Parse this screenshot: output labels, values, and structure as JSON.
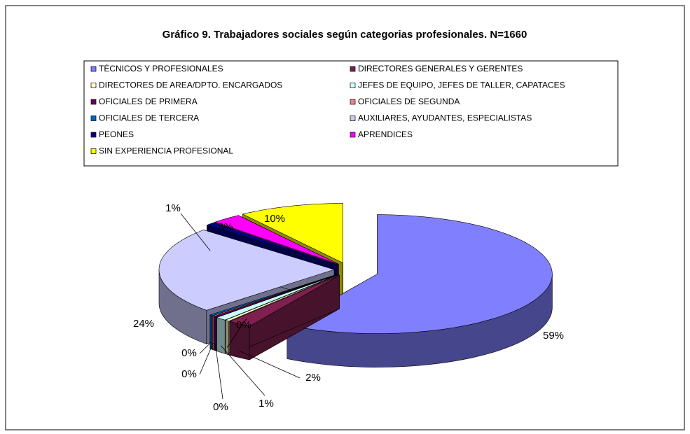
{
  "chart_data": {
    "type": "pie",
    "title": "Gráfico 9. Trabajadores sociales según categorias profesionales. N=1660",
    "categories": [
      "TÉCNICOS Y PROFESIONALES",
      "DIRECTORES GENERALES Y GERENTES",
      "DIRECTORES DE AREA/DPTO. ENCARGADOS",
      "JEFES DE EQUIPO, JEFES DE TALLER, CAPATACES",
      "OFICIALES DE PRIMERA",
      "OFICIALES DE SEGUNDA",
      "OFICIALES DE TERCERA",
      "AUXILIARES, AYUDANTES, ESPECIALISTAS",
      "PEONES",
      "APRENDICES",
      "SIN EXPERIENCIA PROFESIONAL"
    ],
    "values": [
      58.6,
      2.2,
      0.4,
      1.0,
      0.3,
      0.2,
      0.3,
      23.6,
      0.9,
      2.8,
      9.7
    ],
    "value_labels": [
      "59%",
      "2%",
      "0%",
      "1%",
      "0%",
      "0%",
      "0%",
      "24%",
      "1%",
      "3%",
      "10%"
    ],
    "colors": [
      "#8080ff",
      "#802050",
      "#ffffcc",
      "#ccffff",
      "#660066",
      "#ff8080",
      "#0066cc",
      "#ccccff",
      "#000080",
      "#ff00ff",
      "#ffff00"
    ],
    "legend": "top"
  }
}
